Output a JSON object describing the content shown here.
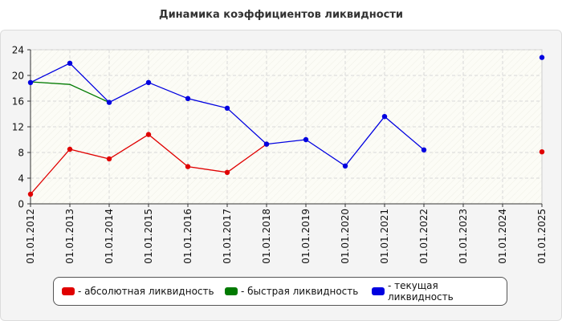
{
  "chart_data": {
    "type": "line",
    "title": "Динамика коэффициентов ликвидности",
    "categories": [
      "01.01.2012",
      "01.01.2013",
      "01.01.2014",
      "01.01.2015",
      "01.01.2016",
      "01.01.2017",
      "01.01.2018",
      "01.01.2019",
      "01.01.2020",
      "01.01.2021",
      "01.01.2022",
      "01.01.2023",
      "01.01.2024",
      "01.01.2025"
    ],
    "ylim": [
      0,
      24
    ],
    "yticks": [
      "0",
      "4",
      "8",
      "12",
      "16",
      "20",
      "24"
    ],
    "grid": true,
    "legend_position": "bottom",
    "series": [
      {
        "name": "- абсолютная ликвидность",
        "color": "#e00000",
        "values": [
          1.5,
          8.5,
          7.0,
          10.8,
          5.8,
          4.9,
          9.3,
          null,
          null,
          null,
          null,
          null,
          null,
          8.1
        ]
      },
      {
        "name": "- быстрая ликвидность",
        "color": "#007a00",
        "values": [
          19.0,
          18.6,
          15.8,
          null,
          null,
          null,
          null,
          null,
          null,
          null,
          null,
          null,
          null,
          null
        ]
      },
      {
        "name": "- текущая ликвидность",
        "color": "#0000e0",
        "values": [
          18.9,
          21.9,
          15.8,
          18.9,
          16.4,
          14.9,
          9.3,
          10.0,
          5.9,
          13.6,
          8.4,
          null,
          null,
          22.8
        ]
      }
    ]
  }
}
